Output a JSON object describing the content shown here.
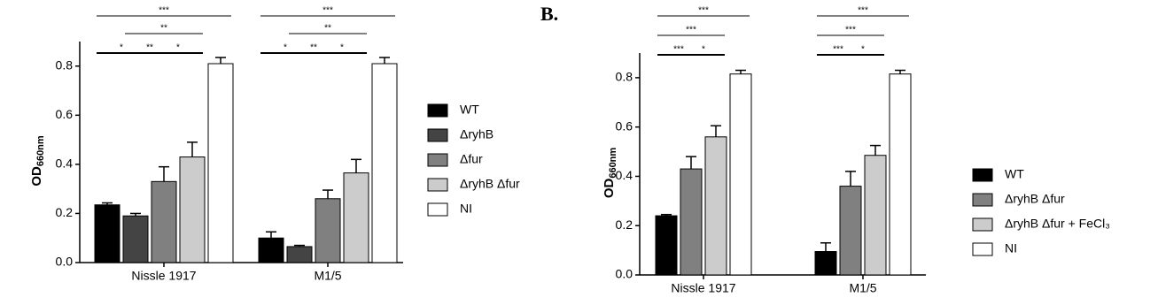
{
  "chart_data": [
    {
      "type": "bar",
      "ylabel": "OD",
      "ylabel_sub": "660nm",
      "categories": [
        "Nissle 1917",
        "M1/5"
      ],
      "series": [
        {
          "name": "WT",
          "color": "#000000",
          "values": [
            0.235,
            0.1
          ],
          "errors": [
            0.008,
            0.025
          ]
        },
        {
          "name": "ΔryhB",
          "color": "#444444",
          "values": [
            0.19,
            0.065
          ],
          "errors": [
            0.01,
            0.005
          ]
        },
        {
          "name": "Δfur",
          "color": "#808080",
          "values": [
            0.33,
            0.26
          ],
          "errors": [
            0.06,
            0.035
          ]
        },
        {
          "name": "ΔryhB Δfur",
          "color": "#cccccc",
          "values": [
            0.43,
            0.365
          ],
          "errors": [
            0.06,
            0.055
          ]
        },
        {
          "name": "NI",
          "color": "#ffffff",
          "values": [
            0.81,
            0.81
          ],
          "errors": [
            0.025,
            0.025
          ]
        }
      ],
      "ylim": [
        0,
        0.9
      ],
      "yticks": [
        {
          "value": 0,
          "label": "0.0"
        },
        0.2,
        0.4,
        0.6,
        0.8
      ],
      "significance": [
        "***",
        "**",
        "*",
        "**",
        "*",
        "***",
        "**",
        "*",
        "**",
        "*"
      ]
    },
    {
      "type": "bar",
      "panel_label": "B.",
      "ylabel": "OD",
      "ylabel_sub": "660nm",
      "categories": [
        "Nissle 1917",
        "M1/5"
      ],
      "series": [
        {
          "name": "WT",
          "color": "#000000",
          "values": [
            0.24,
            0.095
          ],
          "errors": [
            0.005,
            0.035
          ]
        },
        {
          "name": "ΔryhB Δfur",
          "color": "#808080",
          "values": [
            0.43,
            0.36
          ],
          "errors": [
            0.05,
            0.06
          ]
        },
        {
          "name": "ΔryhB Δfur + FeCl₃",
          "color": "#cccccc",
          "values": [
            0.56,
            0.485
          ],
          "errors": [
            0.045,
            0.04
          ]
        },
        {
          "name": "NI",
          "color": "#ffffff",
          "values": [
            0.815,
            0.815
          ],
          "errors": [
            0.015,
            0.015
          ]
        }
      ],
      "ylim": [
        0,
        0.9
      ],
      "yticks": [
        {
          "value": 0,
          "label": "0.0"
        },
        0.2,
        0.4,
        0.6,
        0.8
      ],
      "significance": [
        "***",
        "***",
        "***",
        "*",
        "***",
        "***",
        "***",
        "*"
      ]
    }
  ]
}
